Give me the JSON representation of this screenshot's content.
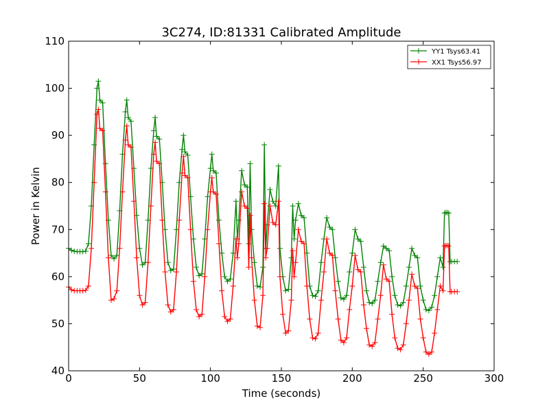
{
  "chart_data": {
    "type": "line",
    "title": "3C274, ID:81331 Calibrated Amplitude",
    "xlabel": "Time (seconds)",
    "ylabel": "Power in Kelvin",
    "xlim": [
      0,
      300
    ],
    "ylim": [
      40,
      110
    ],
    "xticks": [
      0,
      50,
      100,
      150,
      200,
      250,
      300
    ],
    "yticks": [
      40,
      50,
      60,
      70,
      80,
      90,
      100,
      110
    ],
    "grid": false,
    "legend_position": "top-right",
    "marker": "+",
    "series": [
      {
        "name": "YY1 Tsys63.41",
        "color": "#008000",
        "points": [
          [
            0,
            66
          ],
          [
            2,
            65.6
          ],
          [
            4,
            65.4
          ],
          [
            6,
            65.3
          ],
          [
            8,
            65.3
          ],
          [
            10,
            65.3
          ],
          [
            12,
            65.4
          ],
          [
            14,
            67
          ],
          [
            16,
            75
          ],
          [
            18,
            88
          ],
          [
            20,
            100
          ],
          [
            21,
            101.5
          ],
          [
            22,
            97.5
          ],
          [
            24,
            96.9
          ],
          [
            26,
            84
          ],
          [
            28,
            72
          ],
          [
            30,
            64.5
          ],
          [
            32,
            63.8
          ],
          [
            34,
            64.5
          ],
          [
            36,
            74
          ],
          [
            38,
            86
          ],
          [
            40,
            95
          ],
          [
            41,
            97.5
          ],
          [
            42,
            93.8
          ],
          [
            44,
            93
          ],
          [
            46,
            83
          ],
          [
            48,
            73
          ],
          [
            50,
            66
          ],
          [
            52,
            62.5
          ],
          [
            54,
            63
          ],
          [
            56,
            72
          ],
          [
            58,
            83
          ],
          [
            60,
            91
          ],
          [
            61,
            93.8
          ],
          [
            62,
            89.8
          ],
          [
            64,
            89.2
          ],
          [
            66,
            80
          ],
          [
            68,
            70
          ],
          [
            70,
            63
          ],
          [
            72,
            61.3
          ],
          [
            74,
            61.6
          ],
          [
            76,
            70
          ],
          [
            78,
            80
          ],
          [
            80,
            87
          ],
          [
            81,
            90
          ],
          [
            82,
            86.5
          ],
          [
            84,
            85.8
          ],
          [
            86,
            77
          ],
          [
            88,
            68
          ],
          [
            90,
            62
          ],
          [
            92,
            60.2
          ],
          [
            94,
            60.6
          ],
          [
            96,
            68
          ],
          [
            98,
            77
          ],
          [
            100,
            83
          ],
          [
            101,
            86
          ],
          [
            102,
            82.5
          ],
          [
            104,
            82
          ],
          [
            106,
            72
          ],
          [
            108,
            65
          ],
          [
            110,
            60
          ],
          [
            112,
            59
          ],
          [
            114,
            59.5
          ],
          [
            116,
            65
          ],
          [
            118,
            76
          ],
          [
            119,
            68
          ],
          [
            120,
            72
          ],
          [
            122,
            82.5
          ],
          [
            124,
            79.5
          ],
          [
            126,
            79
          ],
          [
            127,
            67
          ],
          [
            128,
            84
          ],
          [
            129,
            70
          ],
          [
            131,
            63
          ],
          [
            133,
            58
          ],
          [
            135,
            57.8
          ],
          [
            137,
            62
          ],
          [
            138,
            88
          ],
          [
            139,
            66
          ],
          [
            140,
            71
          ],
          [
            142,
            78.5
          ],
          [
            144,
            76
          ],
          [
            146,
            75
          ],
          [
            148,
            83.5
          ],
          [
            149,
            66
          ],
          [
            151,
            60
          ],
          [
            153,
            57
          ],
          [
            155,
            57.3
          ],
          [
            157,
            64
          ],
          [
            158,
            75
          ],
          [
            159,
            68
          ],
          [
            160,
            72
          ],
          [
            162,
            75.5
          ],
          [
            164,
            73
          ],
          [
            166,
            72.5
          ],
          [
            168,
            65
          ],
          [
            170,
            58
          ],
          [
            172,
            56
          ],
          [
            174,
            55.8
          ],
          [
            176,
            57
          ],
          [
            178,
            63
          ],
          [
            180,
            68
          ],
          [
            182,
            72.5
          ],
          [
            184,
            70.5
          ],
          [
            186,
            70
          ],
          [
            188,
            64
          ],
          [
            190,
            59
          ],
          [
            192,
            55.5
          ],
          [
            194,
            55.2
          ],
          [
            196,
            56
          ],
          [
            198,
            61
          ],
          [
            200,
            65
          ],
          [
            202,
            70
          ],
          [
            204,
            68
          ],
          [
            206,
            67.5
          ],
          [
            208,
            62
          ],
          [
            210,
            57
          ],
          [
            212,
            54.5
          ],
          [
            214,
            54.3
          ],
          [
            216,
            55
          ],
          [
            218,
            59
          ],
          [
            220,
            63
          ],
          [
            222,
            66.5
          ],
          [
            224,
            66
          ],
          [
            226,
            65.5
          ],
          [
            228,
            60
          ],
          [
            230,
            56
          ],
          [
            232,
            54
          ],
          [
            234,
            53.8
          ],
          [
            236,
            54.5
          ],
          [
            238,
            58
          ],
          [
            240,
            62
          ],
          [
            242,
            66
          ],
          [
            244,
            64.5
          ],
          [
            246,
            64
          ],
          [
            248,
            58
          ],
          [
            250,
            55
          ],
          [
            252,
            53
          ],
          [
            254,
            52.8
          ],
          [
            256,
            53.5
          ],
          [
            258,
            56
          ],
          [
            260,
            60
          ],
          [
            262,
            64
          ],
          [
            264,
            62
          ],
          [
            265,
            73.5
          ],
          [
            266,
            73.6
          ],
          [
            267,
            73.6
          ],
          [
            268,
            73.5
          ],
          [
            269,
            63.2
          ],
          [
            270,
            63.2
          ],
          [
            272,
            63.2
          ],
          [
            274,
            63.2
          ]
        ]
      },
      {
        "name": "XX1 Tsys56.97",
        "color": "#ff0000",
        "points": [
          [
            0,
            57.8
          ],
          [
            2,
            57.2
          ],
          [
            4,
            57
          ],
          [
            6,
            57
          ],
          [
            8,
            57
          ],
          [
            10,
            57
          ],
          [
            12,
            57.1
          ],
          [
            14,
            58
          ],
          [
            16,
            66
          ],
          [
            18,
            80
          ],
          [
            20,
            94.5
          ],
          [
            21,
            95.5
          ],
          [
            22,
            91.5
          ],
          [
            24,
            91
          ],
          [
            26,
            78
          ],
          [
            28,
            64
          ],
          [
            30,
            55
          ],
          [
            32,
            55.3
          ],
          [
            34,
            57
          ],
          [
            36,
            66
          ],
          [
            38,
            78
          ],
          [
            40,
            89
          ],
          [
            41,
            92
          ],
          [
            42,
            88
          ],
          [
            44,
            87.5
          ],
          [
            46,
            76
          ],
          [
            48,
            64
          ],
          [
            50,
            56
          ],
          [
            52,
            54
          ],
          [
            54,
            54.5
          ],
          [
            56,
            63
          ],
          [
            58,
            75
          ],
          [
            60,
            86
          ],
          [
            61,
            88.5
          ],
          [
            62,
            84.5
          ],
          [
            64,
            84
          ],
          [
            66,
            72
          ],
          [
            68,
            61
          ],
          [
            70,
            54
          ],
          [
            72,
            52.5
          ],
          [
            74,
            53
          ],
          [
            76,
            61
          ],
          [
            78,
            72
          ],
          [
            80,
            82
          ],
          [
            81,
            85.5
          ],
          [
            82,
            81.5
          ],
          [
            84,
            81
          ],
          [
            86,
            70
          ],
          [
            88,
            59
          ],
          [
            90,
            53
          ],
          [
            92,
            51.5
          ],
          [
            94,
            52
          ],
          [
            96,
            60
          ],
          [
            98,
            70
          ],
          [
            100,
            78
          ],
          [
            101,
            81
          ],
          [
            102,
            78
          ],
          [
            104,
            77.5
          ],
          [
            106,
            67
          ],
          [
            108,
            57
          ],
          [
            110,
            51.5
          ],
          [
            112,
            50.5
          ],
          [
            114,
            51
          ],
          [
            116,
            58
          ],
          [
            118,
            68
          ],
          [
            119,
            64
          ],
          [
            120,
            67
          ],
          [
            122,
            78
          ],
          [
            124,
            75
          ],
          [
            126,
            74.5
          ],
          [
            127,
            62
          ],
          [
            128,
            73
          ],
          [
            129,
            64
          ],
          [
            131,
            55
          ],
          [
            133,
            49.5
          ],
          [
            135,
            49.2
          ],
          [
            137,
            56
          ],
          [
            138,
            75.5
          ],
          [
            139,
            64
          ],
          [
            140,
            66
          ],
          [
            142,
            75
          ],
          [
            144,
            71.5
          ],
          [
            146,
            71
          ],
          [
            148,
            76
          ],
          [
            149,
            60
          ],
          [
            151,
            52
          ],
          [
            153,
            48
          ],
          [
            155,
            48.5
          ],
          [
            157,
            55
          ],
          [
            158,
            65.5
          ],
          [
            159,
            60
          ],
          [
            160,
            63
          ],
          [
            162,
            70
          ],
          [
            164,
            67.5
          ],
          [
            166,
            67
          ],
          [
            168,
            58
          ],
          [
            170,
            51
          ],
          [
            172,
            47
          ],
          [
            174,
            46.8
          ],
          [
            176,
            48
          ],
          [
            178,
            55
          ],
          [
            180,
            61
          ],
          [
            182,
            68
          ],
          [
            184,
            65
          ],
          [
            186,
            64.5
          ],
          [
            188,
            57
          ],
          [
            190,
            51
          ],
          [
            192,
            46.5
          ],
          [
            194,
            46
          ],
          [
            196,
            47
          ],
          [
            198,
            53
          ],
          [
            200,
            58
          ],
          [
            202,
            64.5
          ],
          [
            204,
            61.5
          ],
          [
            206,
            61
          ],
          [
            208,
            54
          ],
          [
            210,
            49
          ],
          [
            212,
            45.5
          ],
          [
            214,
            45.2
          ],
          [
            216,
            46
          ],
          [
            218,
            51
          ],
          [
            220,
            56
          ],
          [
            222,
            62.5
          ],
          [
            224,
            59.5
          ],
          [
            226,
            59
          ],
          [
            228,
            52
          ],
          [
            230,
            47
          ],
          [
            232,
            44.8
          ],
          [
            234,
            44.5
          ],
          [
            236,
            45.5
          ],
          [
            238,
            50
          ],
          [
            240,
            55
          ],
          [
            242,
            60.5
          ],
          [
            244,
            58
          ],
          [
            246,
            57.5
          ],
          [
            248,
            51
          ],
          [
            250,
            47
          ],
          [
            252,
            44
          ],
          [
            254,
            43.5
          ],
          [
            256,
            44
          ],
          [
            258,
            48
          ],
          [
            260,
            53
          ],
          [
            262,
            58
          ],
          [
            264,
            57
          ],
          [
            265,
            66.5
          ],
          [
            266,
            66.6
          ],
          [
            267,
            66.6
          ],
          [
            268,
            66.5
          ],
          [
            269,
            56.8
          ],
          [
            270,
            56.8
          ],
          [
            272,
            56.8
          ],
          [
            274,
            56.8
          ]
        ]
      }
    ]
  }
}
